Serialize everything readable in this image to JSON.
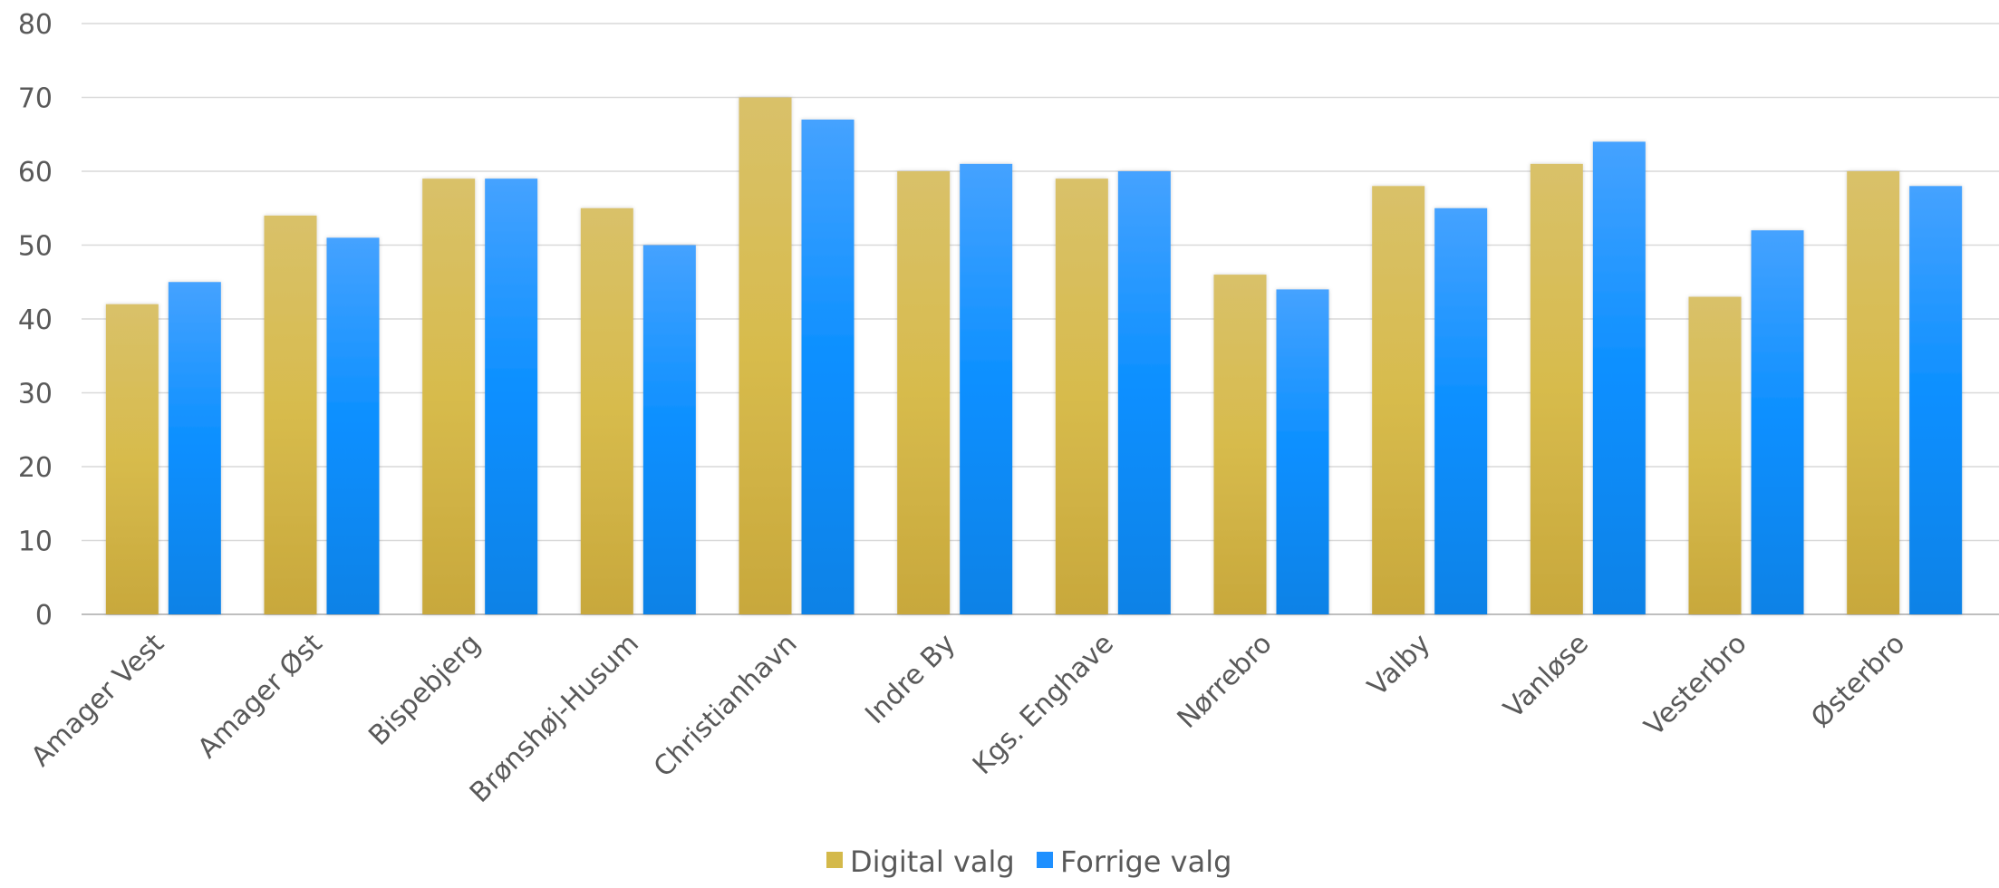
{
  "chart_data": {
    "type": "bar",
    "categories": [
      "Amager Vest",
      "Amager Øst",
      "Bispebjerg",
      "Brønshøj-Husum",
      "Christianhavn",
      "Indre By",
      "Kgs. Enghave",
      "Nørrebro",
      "Valby",
      "Vanløse",
      "Vesterbro",
      "Østerbro"
    ],
    "series": [
      {
        "name": "Digital valg",
        "values": [
          42,
          54,
          59,
          55,
          70,
          60,
          59,
          46,
          58,
          61,
          43,
          60
        ],
        "color": "#D4B94A"
      },
      {
        "name": "Forrige valg",
        "values": [
          45,
          51,
          59,
          50,
          67,
          61,
          60,
          44,
          55,
          64,
          52,
          58
        ],
        "color": "#1E90FF"
      }
    ],
    "title": "",
    "xlabel": "",
    "ylabel": "",
    "ylim": [
      0,
      80
    ],
    "yticks": [
      "0",
      "10",
      "20",
      "30",
      "40",
      "50",
      "60",
      "70",
      "80"
    ],
    "grid": true,
    "legend": "bottom-center"
  }
}
